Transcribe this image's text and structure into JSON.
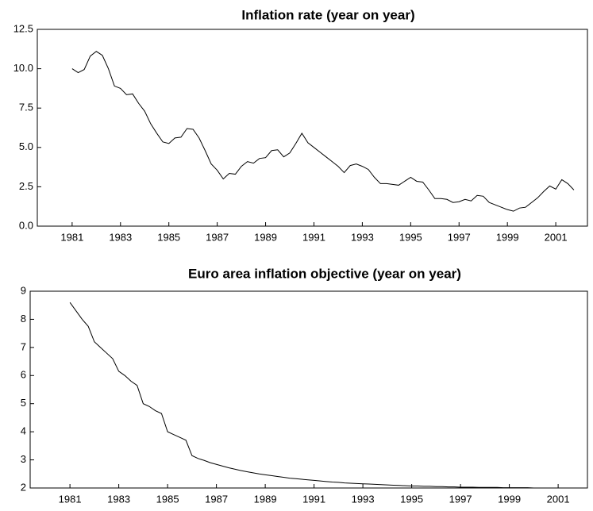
{
  "chart_data": [
    {
      "type": "line",
      "title": "Inflation rate (year on year)",
      "x": [
        1981,
        1981.25,
        1981.5,
        1981.75,
        1982,
        1982.25,
        1982.5,
        1982.75,
        1983,
        1983.25,
        1983.5,
        1983.75,
        1984,
        1984.25,
        1984.5,
        1984.75,
        1985,
        1985.25,
        1985.5,
        1985.75,
        1986,
        1986.25,
        1986.5,
        1986.75,
        1987,
        1987.25,
        1987.5,
        1987.75,
        1988,
        1988.25,
        1988.5,
        1988.75,
        1989,
        1989.25,
        1989.5,
        1989.75,
        1990,
        1990.25,
        1990.5,
        1990.75,
        1991,
        1991.25,
        1991.5,
        1991.75,
        1992,
        1992.25,
        1992.5,
        1992.75,
        1993,
        1993.25,
        1993.5,
        1993.75,
        1994,
        1994.25,
        1994.5,
        1994.75,
        1995,
        1995.25,
        1995.5,
        1995.75,
        1996,
        1996.25,
        1996.5,
        1996.75,
        1997,
        1997.25,
        1997.5,
        1997.75,
        1998,
        1998.25,
        1998.5,
        1998.75,
        1999,
        1999.25,
        1999.5,
        1999.75,
        2000,
        2000.25,
        2000.5,
        2000.75,
        2001,
        2001.25,
        2001.5,
        2001.75
      ],
      "series": [
        {
          "color": "#000000",
          "values": [
            10.0,
            9.75,
            9.95,
            10.8,
            11.1,
            10.85,
            10.0,
            8.9,
            8.75,
            8.35,
            8.4,
            7.8,
            7.3,
            6.5,
            5.9,
            5.35,
            5.25,
            5.6,
            5.65,
            6.2,
            6.15,
            5.6,
            4.8,
            3.95,
            3.55,
            3.0,
            3.35,
            3.3,
            3.8,
            4.1,
            4.0,
            4.3,
            4.35,
            4.8,
            4.85,
            4.4,
            4.65,
            5.25,
            5.9,
            5.3,
            5.0,
            4.7,
            4.4,
            4.1,
            3.8,
            3.4,
            3.85,
            3.95,
            3.8,
            3.6,
            3.1,
            2.7,
            2.7,
            2.65,
            2.6,
            2.85,
            3.1,
            2.85,
            2.8,
            2.3,
            1.75,
            1.75,
            1.7,
            1.5,
            1.55,
            1.7,
            1.6,
            1.95,
            1.9,
            1.5,
            1.35,
            1.2,
            1.05,
            0.95,
            1.15,
            1.2,
            1.5,
            1.8,
            2.2,
            2.55,
            2.35,
            2.95,
            2.7,
            2.3
          ]
        }
      ],
      "xlim": [
        1979.56,
        2002.31
      ],
      "xticks": [
        1981,
        1983,
        1985,
        1987,
        1989,
        1991,
        1993,
        1995,
        1997,
        1999,
        2001
      ],
      "ylim": [
        0,
        12.5
      ],
      "yticks": [
        {
          "value": 0,
          "label": "0.0"
        },
        2.5,
        {
          "value": 5,
          "label": "5.0"
        },
        7.5,
        {
          "value": 10,
          "label": "10.0"
        },
        12.5
      ],
      "grid": false
    },
    {
      "type": "line",
      "title": "Euro area inflation objective (year on year)",
      "x": [
        1981,
        1981.25,
        1981.5,
        1981.75,
        1982,
        1982.25,
        1982.5,
        1982.75,
        1983,
        1983.25,
        1983.5,
        1983.75,
        1984,
        1984.25,
        1984.5,
        1984.75,
        1985,
        1985.25,
        1985.5,
        1985.75,
        1986,
        1986.25,
        1986.5,
        1986.75,
        1987,
        1987.25,
        1987.5,
        1987.75,
        1988,
        1988.25,
        1988.5,
        1988.75,
        1989,
        1989.25,
        1989.5,
        1989.75,
        1990,
        1990.25,
        1990.5,
        1990.75,
        1991,
        1991.25,
        1991.5,
        1991.75,
        1992,
        1992.25,
        1992.5,
        1992.75,
        1993,
        1993.25,
        1993.5,
        1993.75,
        1994,
        1994.25,
        1994.5,
        1994.75,
        1995,
        1995.25,
        1995.5,
        1995.75,
        1996,
        1996.25,
        1996.5,
        1996.75,
        1997,
        1997.25,
        1997.5,
        1997.75,
        1998,
        1998.25,
        1998.5,
        1998.75,
        1999,
        1999.25,
        1999.5,
        1999.75,
        2000,
        2000.25,
        2000.5,
        2000.75,
        2001,
        2001.25,
        2001.5,
        2001.75
      ],
      "series": [
        {
          "color": "#000000",
          "values": [
            8.6,
            8.3,
            8.0,
            7.75,
            7.2,
            7.0,
            6.8,
            6.6,
            6.15,
            6.0,
            5.8,
            5.65,
            5.0,
            4.9,
            4.75,
            4.65,
            4.0,
            3.9,
            3.8,
            3.7,
            3.15,
            3.05,
            2.98,
            2.9,
            2.84,
            2.78,
            2.72,
            2.67,
            2.62,
            2.58,
            2.54,
            2.5,
            2.47,
            2.44,
            2.41,
            2.38,
            2.35,
            2.33,
            2.31,
            2.29,
            2.27,
            2.25,
            2.23,
            2.21,
            2.2,
            2.18,
            2.17,
            2.16,
            2.15,
            2.14,
            2.13,
            2.12,
            2.11,
            2.1,
            2.09,
            2.08,
            2.07,
            2.07,
            2.06,
            2.06,
            2.05,
            2.05,
            2.04,
            2.04,
            2.03,
            2.03,
            2.03,
            2.02,
            2.02,
            2.02,
            2.02,
            2.01,
            2.01,
            2.01,
            2.01,
            2.01,
            2.0,
            2.0,
            2.0,
            2.0,
            2.0,
            2.0,
            2.0,
            2.0
          ]
        }
      ],
      "xlim": [
        1979.37,
        2002.2
      ],
      "xticks": [
        1981,
        1983,
        1985,
        1987,
        1989,
        1991,
        1993,
        1995,
        1997,
        1999,
        2001
      ],
      "ylim": [
        2,
        9
      ],
      "yticks": [
        2,
        3,
        4,
        5,
        6,
        7,
        8,
        9
      ],
      "grid": false
    }
  ]
}
